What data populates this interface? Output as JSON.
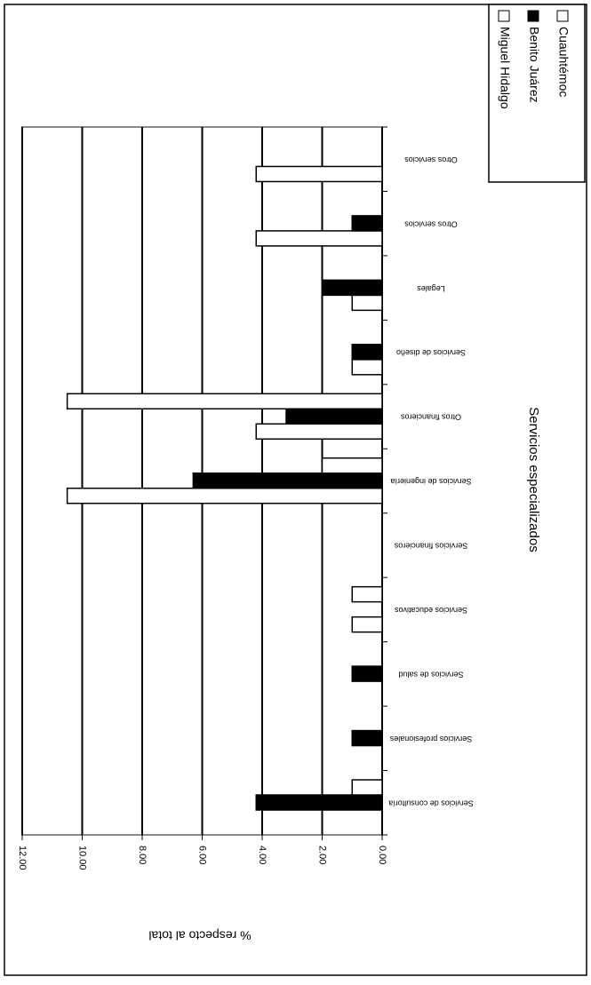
{
  "chart_data": {
    "type": "bar",
    "orientation": "horizontal",
    "xlabel": "% respecto al total",
    "ylabel": "Servicios especializados",
    "categories": [
      "Servicios de consultoría",
      "Servicios profesionales",
      "Servicios de salud",
      "Servicios educativos",
      "Servicios financieros",
      "Servicios de ingeniería",
      "Otros financieros",
      "Servicios de diseño",
      "Legales",
      "Otros servicios",
      "Otros servicios"
    ],
    "series": [
      {
        "name": "Miguel Hidalgo",
        "color": "#ffffff",
        "values": [
          0,
          0,
          0,
          1.0,
          0,
          10.5,
          4.2,
          1.0,
          1.0,
          4.2,
          4.2
        ]
      },
      {
        "name": "Benito Juárez",
        "color": "#000000",
        "values": [
          4.2,
          1.0,
          1.0,
          0,
          0,
          6.3,
          3.2,
          1.0,
          2.0,
          1.0,
          0
        ]
      },
      {
        "name": "Cuauhtémoc",
        "color": "#ffffff",
        "values": [
          1.0,
          0,
          0,
          1.0,
          0,
          2.0,
          10.5,
          0,
          0,
          0,
          0
        ]
      }
    ],
    "ylim": [
      0,
      12
    ],
    "yticks": [
      {
        "value": 0,
        "label": "0.00"
      },
      {
        "value": 2,
        "label": "2.00"
      },
      {
        "value": 4,
        "label": "4.00"
      },
      {
        "value": 6,
        "label": "6.00"
      },
      {
        "value": 8,
        "label": "8.00"
      },
      {
        "value": 10,
        "label": "10.00"
      },
      {
        "value": 12,
        "label": "12.00"
      }
    ],
    "grid": true,
    "legend": "top-right"
  }
}
